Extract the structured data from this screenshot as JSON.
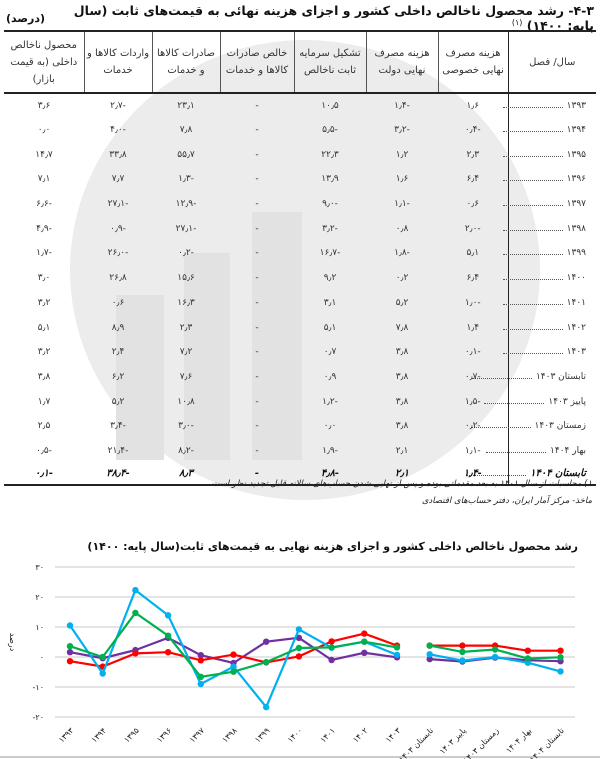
{
  "header": {
    "title": "۴-۳- رشد محصول ناخالص داخلی کشور و اجزای هزینه نهائی به قیمت‌های ثابت (سال پایه: ۱۴۰۰)",
    "footnote_mark": "(۱)",
    "unit": "(درصد)"
  },
  "table": {
    "columns": [
      "سال/ فصل",
      "هزینه مصرف نهایی خصوصی",
      "هزینه مصرف نهایی دولت",
      "تشکیل سرمایه ثابت ناخالص",
      "خالص صادرات کالاها و خدمات",
      "صادرات کالاها و خدمات",
      "واردات کالاها و خدمات",
      "محصول ناخالص داخلی (به قیمت بازار)"
    ],
    "rows": [
      {
        "period": "۱۳۹۳",
        "values": [
          "۱٫۶",
          "-۱٫۴",
          "۱۰٫۵",
          "-",
          "۲۳٫۱",
          "-۲٫۷",
          "۳٫۶"
        ]
      },
      {
        "period": "۱۳۹۴",
        "values": [
          "-۰٫۴",
          "-۳٫۲",
          "-۵٫۵",
          "-",
          "۷٫۸",
          "-۴٫۰",
          "۰٫۰"
        ]
      },
      {
        "period": "۱۳۹۵",
        "values": [
          "۲٫۳",
          "۱٫۲",
          "۲۲٫۳",
          "-",
          "۵۵٫۷",
          "۳۳٫۸",
          "۱۴٫۷"
        ]
      },
      {
        "period": "۱۳۹۶",
        "values": [
          "۶٫۴",
          "۱٫۶",
          "۱۳٫۹",
          "-",
          "-۱٫۳",
          "۷٫۷",
          "۷٫۱"
        ]
      },
      {
        "period": "۱۳۹۷",
        "values": [
          "۰٫۶",
          "-۱٫۱",
          "-۹٫۰",
          "-",
          "-۱۲٫۹",
          "-۲۷٫۱",
          "-۶٫۶"
        ]
      },
      {
        "period": "۱۳۹۸",
        "values": [
          "-۲٫۰",
          "۰٫۸",
          "-۳٫۲",
          "-",
          "-۲۷٫۱",
          "-۰٫۹",
          "-۴٫۹"
        ]
      },
      {
        "period": "۱۳۹۹",
        "values": [
          "۵٫۱",
          "-۱٫۸",
          "-۱۶٫۷",
          "-",
          "-۰٫۲",
          "-۲۶٫۰",
          "-۱٫۷"
        ]
      },
      {
        "period": "۱۴۰۰",
        "values": [
          "۶٫۴",
          "۰٫۲",
          "۹٫۲",
          "-",
          "۱۵٫۶",
          "۲۶٫۸",
          "۳٫۰"
        ]
      },
      {
        "period": "۱۴۰۱",
        "values": [
          "-۱٫۰",
          "۵٫۲",
          "۳٫۱",
          "-",
          "۱۶٫۳",
          "۰٫۶",
          "۳٫۲"
        ]
      },
      {
        "period": "۱۴۰۲",
        "values": [
          "۱٫۴",
          "۷٫۸",
          "۵٫۱",
          "-",
          "۲٫۳",
          "۸٫۹",
          "۵٫۱"
        ]
      },
      {
        "period": "۱۴۰۳",
        "values": [
          "-۰٫۱",
          "۳٫۸",
          "۰٫۷",
          "-",
          "۷٫۲",
          "۲٫۴",
          "۳٫۲"
        ]
      },
      {
        "period": "تابستان ۱۴۰۳",
        "values": [
          "-۰٫۷",
          "۳٫۸",
          "۰٫۹",
          "-",
          "۷٫۶",
          "۶٫۲",
          "۳٫۸"
        ]
      },
      {
        "period": "پاییز ۱۴۰۳",
        "values": [
          "-۱٫۵",
          "۳٫۸",
          "-۱٫۲",
          "-",
          "۱۰٫۸",
          "۵٫۲",
          "۱٫۷"
        ]
      },
      {
        "period": "زمستان ۱۴۰۳",
        "values": [
          "-۰٫۲",
          "۳٫۸",
          "۰٫۰",
          "-",
          "-۳٫۰",
          "-۳٫۴",
          "۲٫۵"
        ]
      },
      {
        "period": "بهار ۱۴۰۴",
        "values": [
          "-۱٫۱",
          "۲٫۱",
          "-۱٫۹",
          "-",
          "-۸٫۲",
          "-۲۱٫۴",
          "-۰٫۵"
        ]
      }
    ],
    "total_row": {
      "period": "تابستان ۱۴۰۴",
      "values": [
        "-۱٫۴",
        "۲٫۱",
        "-۴٫۸",
        "-",
        "۸٫۳",
        "-۳۸٫۴",
        "-۰٫۱"
      ]
    }
  },
  "notes": {
    "footnote": "۱) محاسبات از سال ۱۴۰۱ به بعد مقدماتی بوده و پس از نهایی شدن حساب‌های سالانه قابل تجدید نظر است.",
    "source": "ماخذ- مرکز آمار ایران، دفتر حساب‌های اقتصادی"
  },
  "chart_data": {
    "type": "line",
    "title": "رشد محصول ناخالص داخلی کشور و اجزای هزینه نهایی به قیمت‌های ثابت(سال پایه: ۱۴۰۰)",
    "xlabel": "",
    "ylabel": "درصد",
    "ylim": [
      -20,
      30
    ],
    "yticks": [
      "۳۰",
      "۲۰",
      "۱۰",
      "۰",
      "-۱۰",
      "-۲۰"
    ],
    "ytick_values": [
      30,
      20,
      10,
      0,
      -10,
      -20
    ],
    "grid": true,
    "legend": "none",
    "categories": [
      "۱۳۹۳",
      "۱۳۹۴",
      "۱۳۹۵",
      "۱۳۹۶",
      "۱۳۹۷",
      "۱۳۹۸",
      "۱۳۹۹",
      "۱۴۰۰",
      "۱۴۰۱",
      "۱۴۰۲",
      "۱۴۰۳",
      "تابستان ۱۴۰۳",
      "پاییز ۱۴۰۳",
      "زمستان ۱۴۰۳",
      "بهار ۱۴۰۴",
      "تابستان ۱۴۰۴"
    ],
    "gap_after_index": 10,
    "series": [
      {
        "name": "هزینه مصرف نهایی خصوصی",
        "color": "#7030a0",
        "values": [
          1.6,
          -0.4,
          2.3,
          6.4,
          0.6,
          -2.0,
          5.1,
          6.4,
          -1.0,
          1.4,
          -0.1,
          -0.7,
          -1.5,
          -0.2,
          -1.1,
          -1.4
        ]
      },
      {
        "name": "هزینه مصرف نهایی دولت",
        "color": "#ff0000",
        "values": [
          -1.4,
          -3.2,
          1.2,
          1.6,
          -1.1,
          0.8,
          -1.8,
          0.2,
          5.2,
          7.8,
          3.8,
          3.8,
          3.8,
          3.8,
          2.1,
          2.1
        ]
      },
      {
        "name": "تشکیل سرمایه ثابت ناخالص",
        "color": "#00b0f0",
        "values": [
          10.5,
          -5.5,
          22.3,
          13.9,
          -9.0,
          -3.2,
          -16.7,
          9.2,
          3.1,
          5.1,
          0.7,
          0.9,
          -1.2,
          0.0,
          -1.9,
          -4.8
        ]
      },
      {
        "name": "محصول ناخالص داخلی",
        "color": "#00b050",
        "values": [
          3.6,
          0.0,
          14.7,
          7.1,
          -6.6,
          -4.9,
          -1.7,
          3.0,
          3.2,
          5.1,
          3.2,
          3.8,
          1.7,
          2.5,
          -0.5,
          -0.1
        ]
      }
    ]
  }
}
